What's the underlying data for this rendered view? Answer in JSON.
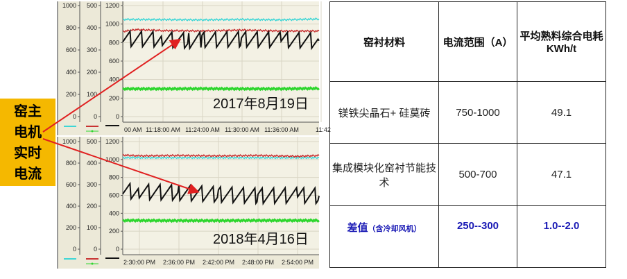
{
  "side_label": "窑主电机实时电流",
  "chart_data": [
    {
      "type": "line",
      "date_label": "2017年8月19日",
      "axes": [
        {
          "ticks": [
            1000,
            800,
            600,
            400,
            200,
            0
          ],
          "ylim": [
            0,
            1000
          ]
        },
        {
          "ticks": [
            500,
            400,
            300,
            200,
            100,
            0
          ],
          "ylim": [
            0,
            500
          ]
        },
        {
          "ticks": [
            1200,
            1000,
            800,
            600,
            400,
            200,
            0
          ],
          "ylim": [
            0,
            1200
          ]
        }
      ],
      "x_ticks": [
        "00 AM",
        "11:18:00 AM",
        "11:24:00 AM",
        "11:30:00 AM",
        "11:36:00 AM",
        "11:42"
      ],
      "xlim": [
        "11:12:00",
        "11:41:45"
      ],
      "grid": true,
      "series": [
        {
          "color": "#3dd6d6",
          "x": [
            "11:12:00",
            "11:18:00",
            "11:24:00",
            "11:30:00",
            "11:36:00",
            "11:41:45"
          ],
          "values": [
            1050,
            1048,
            1045,
            1050,
            1045,
            1055
          ]
        },
        {
          "color": "#c83232",
          "x": [
            "11:12:00",
            "11:14:00",
            "11:18:00",
            "11:24:00",
            "11:30:00",
            "11:36:00",
            "11:41:45"
          ],
          "values": [
            920,
            940,
            930,
            925,
            935,
            925,
            925
          ]
        },
        {
          "color": "#111111",
          "x": [
            "11:12:00",
            "11:18:00",
            "11:22:00",
            "11:24:00",
            "11:30:00",
            "11:36:00",
            "11:41:45"
          ],
          "values": [
            840,
            835,
            820,
            830,
            835,
            830,
            820
          ]
        },
        {
          "color": "#2ed62e",
          "x": [
            "11:12:00",
            "11:18:00",
            "11:24:00",
            "11:30:00",
            "11:36:00",
            "11:41:45"
          ],
          "values": [
            300,
            300,
            302,
            300,
            300,
            305
          ]
        }
      ]
    },
    {
      "type": "line",
      "date_label": "2018年4月16日",
      "axes": [
        {
          "ticks": [
            1000,
            800,
            600,
            400,
            200,
            0
          ],
          "ylim": [
            0,
            1000
          ]
        },
        {
          "ticks": [
            500,
            400,
            300,
            200,
            100,
            0
          ],
          "ylim": [
            0,
            500
          ]
        },
        {
          "ticks": [
            1200,
            1000,
            800,
            600,
            400,
            200,
            0
          ],
          "ylim": [
            0,
            1200
          ]
        }
      ],
      "x_ticks": [
        "2:30:00 PM",
        "2:36:00 PM",
        "2:42:00 PM",
        "2:48:00 PM",
        "2:54:00 PM"
      ],
      "xlim": [
        "14:27:30",
        "14:57:15"
      ],
      "grid": true,
      "series": [
        {
          "color": "#3dd6d6",
          "x": [
            "14:27:30",
            "14:57:15"
          ],
          "values": [
            1020,
            1020
          ]
        },
        {
          "color": "#c83232",
          "x": [
            "14:27:30",
            "14:30:00",
            "14:36:00",
            "14:42:00",
            "14:48:00",
            "14:54:00",
            "14:57:15"
          ],
          "values": [
            1050,
            1040,
            1045,
            1040,
            1045,
            1035,
            1045
          ]
        },
        {
          "color": "#111111",
          "x": [
            "14:27:30",
            "14:30:00",
            "14:36:00",
            "14:42:00",
            "14:48:00",
            "14:54:00",
            "14:57:15"
          ],
          "values": [
            650,
            640,
            630,
            610,
            595,
            600,
            595
          ]
        },
        {
          "color": "#2ed62e",
          "x": [
            "14:27:30",
            "14:36:00",
            "14:42:00",
            "14:48:00",
            "14:57:15"
          ],
          "values": [
            320,
            318,
            318,
            320,
            320
          ]
        }
      ]
    }
  ],
  "table": {
    "headers": [
      "窑衬材料",
      "电流范围（A）",
      "平均熟料综合电耗KWh/t"
    ],
    "rows": [
      [
        "镁铁尖晶石+ 硅莫砖",
        "750-1000",
        "49.1"
      ],
      [
        "集成模块化窑衬节能技术",
        "500-700",
        "47.1"
      ]
    ],
    "diff_row": {
      "label": "差值",
      "note": "（含冷却风机）",
      "current": "250--300",
      "energy": "1.0--2.0"
    },
    "diff_color": "#1a1ab5"
  },
  "arrow_color": "#e02020",
  "label_bg": "#f5b800"
}
